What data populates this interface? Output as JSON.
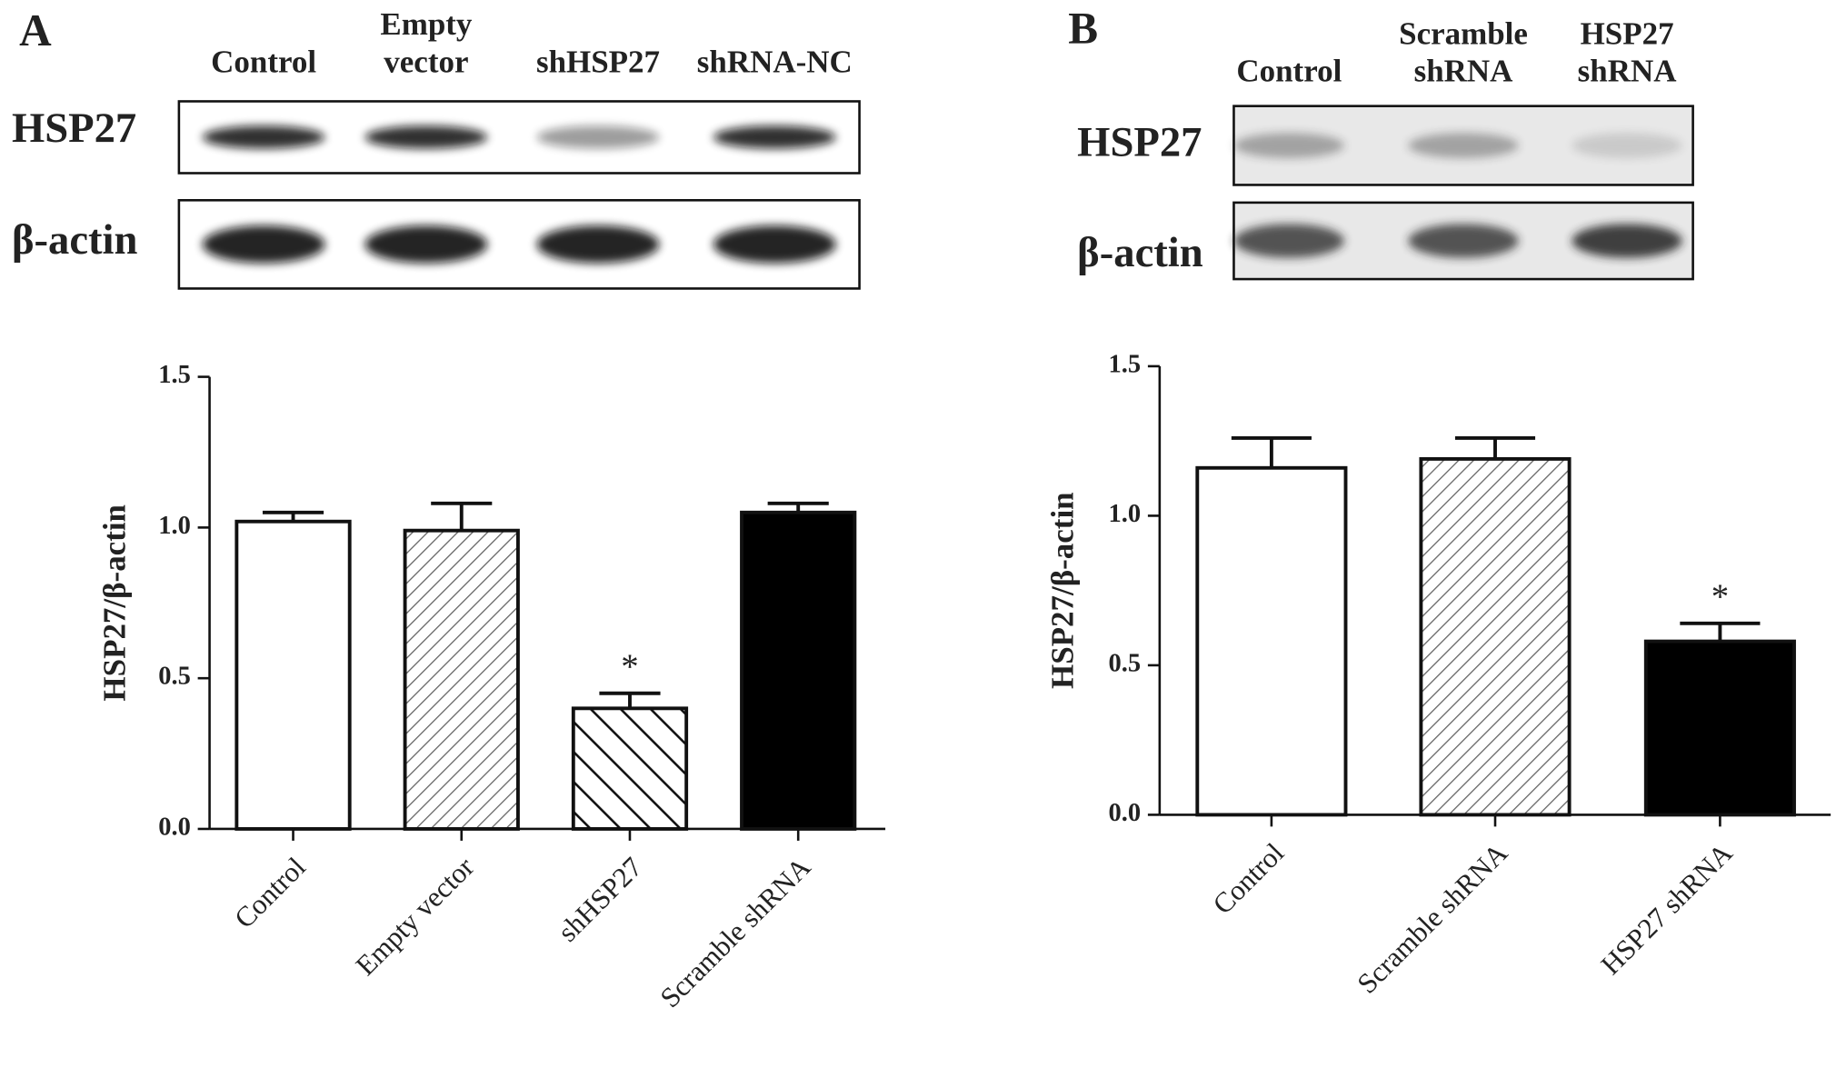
{
  "chart_data": [
    {
      "type": "bar",
      "panel": "A",
      "blot": {
        "lanes": [
          [
            "Control"
          ],
          [
            "Empty",
            "vector"
          ],
          [
            "shHSP27"
          ],
          [
            "shRNA-NC"
          ]
        ],
        "rows": [
          "HSP27",
          "β-actin"
        ]
      },
      "y_label": "HSP27/β-actin",
      "categories": [
        "Control",
        "Empty vector",
        "shHSP27",
        "Scramble shRNA"
      ],
      "values": [
        1.02,
        0.99,
        0.4,
        1.05
      ],
      "errors": [
        0.03,
        0.09,
        0.05,
        0.03
      ],
      "bar_colors": [
        "#ffffff",
        "hatch-fine",
        "hatch-wide",
        "#000000"
      ],
      "annotations": [
        {
          "label": "*",
          "x": "shHSP27"
        }
      ],
      "ylim": [
        0,
        1.5
      ],
      "yticks": [
        {
          "value": 0,
          "label": "0.0"
        },
        0.5,
        {
          "value": 1,
          "label": "1.0"
        },
        1.5
      ]
    },
    {
      "type": "bar",
      "panel": "B",
      "blot": {
        "lanes": [
          [
            "Control"
          ],
          [
            "Scramble",
            "shRNA"
          ],
          [
            "HSP27",
            "shRNA"
          ]
        ],
        "rows": [
          "HSP27",
          "β-actin"
        ]
      },
      "y_label": "HSP27/β-actin",
      "categories": [
        "Control",
        "Scramble shRNA",
        "HSP27 shRNA"
      ],
      "values": [
        1.16,
        1.19,
        0.58
      ],
      "errors": [
        0.1,
        0.07,
        0.06
      ],
      "bar_colors": [
        "#ffffff",
        "hatch-fine",
        "#000000"
      ],
      "annotations": [
        {
          "label": "*",
          "x": "HSP27 shRNA"
        }
      ],
      "ylim": [
        0,
        1.5
      ],
      "yticks": [
        {
          "value": 0,
          "label": "0.0"
        },
        0.5,
        {
          "value": 1,
          "label": "1.0"
        },
        1.5
      ]
    }
  ]
}
